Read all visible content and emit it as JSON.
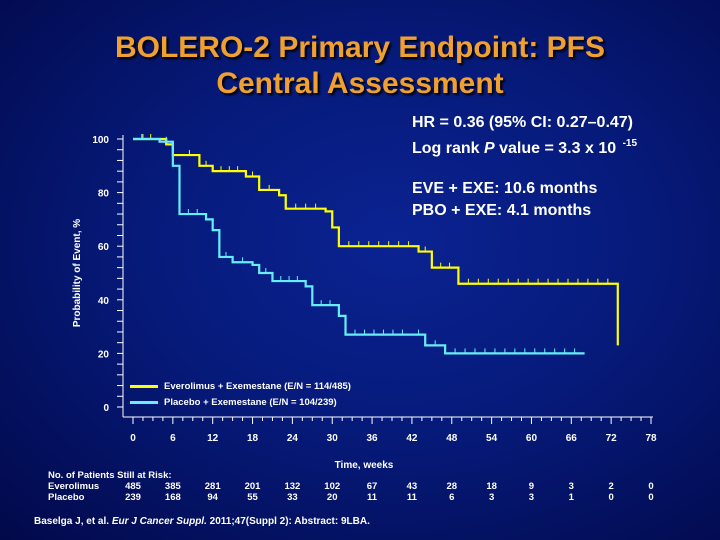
{
  "title": {
    "line1": "BOLERO-2 Primary Endpoint: PFS",
    "line2": "Central Assessment"
  },
  "stats": {
    "hr": "HR = 0.36 (95% CI: 0.27–0.47)",
    "logrank_prefix": "Log rank ",
    "logrank_p": "P",
    "logrank_suffix": "  value = 3.3 x 10 ",
    "logrank_exp": "-15",
    "eve": "EVE + EXE: 10.6 months",
    "pbo": "PBO + EXE: 4.1 months"
  },
  "legend": {
    "series1": "Everolimus + Exemestane (E/N = 114/485)",
    "series2": "Placebo + Exemestane (E/N = 104/239)"
  },
  "colors": {
    "everolimus": "#ffff00",
    "placebo": "#66eeff",
    "title": "#f0a030"
  },
  "risk": {
    "header": "No. of Patients Still at Risk:",
    "rows": [
      {
        "label": "Everolimus",
        "values": [
          "485",
          "385",
          "281",
          "201",
          "132",
          "102",
          "67",
          "43",
          "28",
          "18",
          "9",
          "3",
          "2",
          "0"
        ]
      },
      {
        "label": "Placebo",
        "values": [
          "239",
          "168",
          "94",
          "55",
          "33",
          "20",
          "11",
          "11",
          "6",
          "3",
          "3",
          "1",
          "0",
          "0"
        ]
      }
    ]
  },
  "citation": {
    "prefix": "Baselga J, et al. ",
    "journal": "Eur J Cancer Suppl.",
    "suffix": " 2011;47(Suppl 2): Abstract: 9LBA."
  },
  "chart_data": {
    "type": "line",
    "step": true,
    "xlabel": "Time, weeks",
    "ylabel": "Probability of Event, %",
    "xlim": [
      0,
      78
    ],
    "ylim": [
      0,
      100
    ],
    "xticks": [
      0,
      6,
      12,
      18,
      24,
      30,
      36,
      42,
      48,
      54,
      60,
      66,
      72,
      78
    ],
    "yticks": [
      0,
      20,
      40,
      60,
      80,
      100
    ],
    "legend_position": "bottom-left",
    "series": [
      {
        "name": "Everolimus + Exemestane (E/N = 114/485)",
        "color": "#ffff00",
        "points": [
          [
            0,
            100
          ],
          [
            4,
            100
          ],
          [
            5,
            98
          ],
          [
            6,
            94
          ],
          [
            7,
            94
          ],
          [
            10,
            90
          ],
          [
            12,
            88
          ],
          [
            17,
            86
          ],
          [
            19,
            81
          ],
          [
            22,
            79
          ],
          [
            23,
            74
          ],
          [
            29,
            73
          ],
          [
            30,
            67
          ],
          [
            31,
            60
          ],
          [
            43,
            58
          ],
          [
            45,
            52
          ],
          [
            49,
            46
          ],
          [
            73,
            46
          ],
          [
            73,
            23
          ]
        ]
      },
      {
        "name": "Placebo + Exemestane (E/N = 104/239)",
        "color": "#66eeff",
        "points": [
          [
            0,
            100
          ],
          [
            3,
            100
          ],
          [
            4,
            99
          ],
          [
            6,
            90
          ],
          [
            7,
            72
          ],
          [
            11,
            70
          ],
          [
            12,
            66
          ],
          [
            13,
            56
          ],
          [
            15,
            54
          ],
          [
            18,
            53
          ],
          [
            19,
            50
          ],
          [
            21,
            47
          ],
          [
            26,
            45
          ],
          [
            27,
            38
          ],
          [
            31,
            34
          ],
          [
            32,
            27
          ],
          [
            42,
            27
          ],
          [
            44,
            23
          ],
          [
            47,
            20
          ],
          [
            68,
            20
          ]
        ]
      }
    ]
  }
}
